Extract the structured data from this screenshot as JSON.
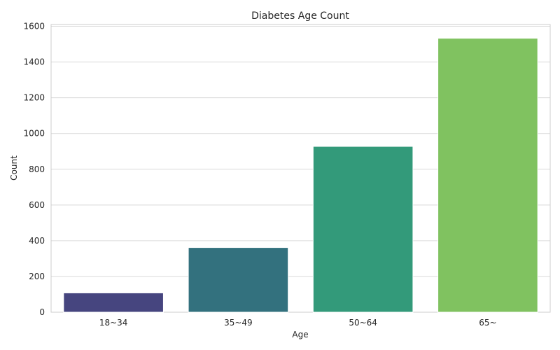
{
  "chart_data": {
    "type": "bar",
    "title": "Diabetes Age Count",
    "xlabel": "Age",
    "ylabel": "Count",
    "categories": [
      "18~34",
      "35~49",
      "50~64",
      "65~"
    ],
    "values": [
      108,
      362,
      928,
      1533
    ],
    "ylim": [
      0,
      1610
    ],
    "yticks": [
      0,
      200,
      400,
      600,
      800,
      1000,
      1200,
      1400,
      1600
    ],
    "grid": true,
    "colors": [
      "#46457f",
      "#33717e",
      "#339a7a",
      "#80c260"
    ]
  }
}
